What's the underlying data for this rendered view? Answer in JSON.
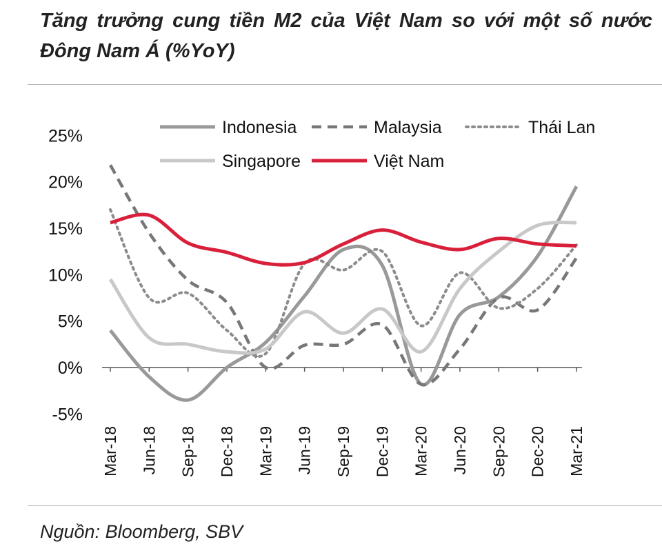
{
  "title": "Tăng trưởng cung tiền M2 của Việt Nam so với một số nước Đông Nam Á (%YoY)",
  "source": "Nguồn: Bloomberg, SBV",
  "chart_data": {
    "type": "line",
    "title": "Tăng trưởng cung tiền M2 của Việt Nam so với một số nước Đông Nam Á (%YoY)",
    "xlabel": "",
    "ylabel": "",
    "ylim": [
      -5,
      25
    ],
    "yticks": [
      -5,
      0,
      5,
      10,
      15,
      20,
      25
    ],
    "ytick_labels": [
      "-5%",
      "0%",
      "5%",
      "10%",
      "15%",
      "20%",
      "25%"
    ],
    "categories": [
      "Mar-18",
      "Jun-18",
      "Sep-18",
      "Dec-18",
      "Mar-19",
      "Jun-19",
      "Sep-19",
      "Dec-19",
      "Mar-20",
      "Jun-20",
      "Sep-20",
      "Dec-20",
      "Mar-21"
    ],
    "legend_position": "top",
    "series": [
      {
        "name": "Indonesia",
        "color": "#999999",
        "dash": "solid",
        "values": [
          4.0,
          -1.0,
          -3.5,
          0.0,
          2.7,
          7.7,
          12.7,
          11.0,
          -1.8,
          5.7,
          7.6,
          12.0,
          19.5
        ]
      },
      {
        "name": "Malaysia",
        "color": "#777777",
        "dash": "dashed",
        "values": [
          21.8,
          14.5,
          9.4,
          7.0,
          0.0,
          2.4,
          2.5,
          4.6,
          -1.8,
          2.0,
          7.5,
          6.2,
          11.8
        ]
      },
      {
        "name": "Thái Lan",
        "color": "#8c8c8c",
        "dash": "dotted",
        "values": [
          17.0,
          7.5,
          8.0,
          4.0,
          1.5,
          11.2,
          10.5,
          12.5,
          4.5,
          10.2,
          6.4,
          8.5,
          13.2
        ]
      },
      {
        "name": "Singapore",
        "color": "#c8c8c8",
        "dash": "solid",
        "values": [
          9.5,
          3.2,
          2.5,
          1.7,
          2.0,
          6.0,
          3.7,
          6.3,
          1.7,
          8.5,
          12.5,
          15.3,
          15.6
        ]
      },
      {
        "name": "Việt Nam",
        "color": "#d9203b",
        "dash": "solid",
        "values": [
          15.6,
          16.4,
          13.4,
          12.4,
          11.2,
          11.3,
          13.3,
          14.8,
          13.5,
          12.7,
          13.9,
          13.3,
          13.1
        ]
      }
    ]
  }
}
